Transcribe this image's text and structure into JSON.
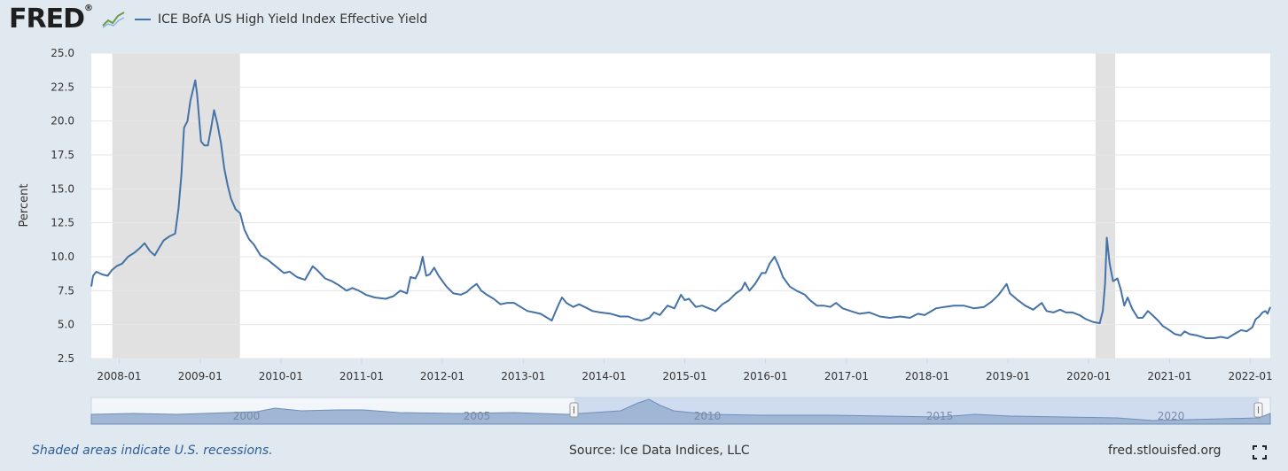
{
  "header": {
    "logo_text": "FRED",
    "logo_mark": "®",
    "legend_label": "ICE BofA US High Yield Index Effective Yield"
  },
  "footer": {
    "recession_note": "Shaded areas indicate U.S. recessions.",
    "source": "Source: Ice Data Indices, LLC",
    "site": "fred.stlouisfed.org"
  },
  "navigator": {
    "labels": [
      "2000",
      "2005",
      "2010",
      "2015",
      "2020"
    ]
  },
  "colors": {
    "background": "#e1e9f0",
    "plot_bg": "#ffffff",
    "line": "#4572a7",
    "recession": "#e1e1e1",
    "grid": "#e6e6e6"
  },
  "chart_data": {
    "type": "line",
    "title": "",
    "xlabel": "",
    "ylabel": "Percent",
    "ylim": [
      2.5,
      25.0
    ],
    "xlim": [
      "2007-08-28",
      "2022-04-01"
    ],
    "grid": true,
    "yticks": [
      "2.5",
      "5.0",
      "7.5",
      "10.0",
      "12.5",
      "15.0",
      "17.5",
      "20.0",
      "22.5",
      "25.0"
    ],
    "xticks": [
      "2008-01",
      "2009-01",
      "2010-01",
      "2011-01",
      "2012-01",
      "2013-01",
      "2014-01",
      "2015-01",
      "2016-01",
      "2017-01",
      "2018-01",
      "2019-01",
      "2020-01",
      "2021-01",
      "2022-01"
    ],
    "recessions": [
      [
        "2007-12-01",
        "2009-06-30"
      ],
      [
        "2020-02-01",
        "2020-04-30"
      ]
    ],
    "series": [
      {
        "name": "ICE BofA US High Yield Index Effective Yield",
        "points": [
          [
            "2007-08-28",
            7.8
          ],
          [
            "2007-09-05",
            8.6
          ],
          [
            "2007-09-20",
            8.9
          ],
          [
            "2007-10-15",
            8.7
          ],
          [
            "2007-11-10",
            8.6
          ],
          [
            "2007-11-28",
            9.0
          ],
          [
            "2007-12-20",
            9.3
          ],
          [
            "2008-01-15",
            9.5
          ],
          [
            "2008-02-10",
            10.0
          ],
          [
            "2008-03-10",
            10.3
          ],
          [
            "2008-04-01",
            10.6
          ],
          [
            "2008-04-25",
            11.0
          ],
          [
            "2008-05-20",
            10.4
          ],
          [
            "2008-06-10",
            10.1
          ],
          [
            "2008-07-01",
            10.7
          ],
          [
            "2008-07-20",
            11.2
          ],
          [
            "2008-08-15",
            11.5
          ],
          [
            "2008-09-10",
            11.7
          ],
          [
            "2008-09-25",
            13.5
          ],
          [
            "2008-10-08",
            16.0
          ],
          [
            "2008-10-20",
            19.5
          ],
          [
            "2008-11-05",
            20.0
          ],
          [
            "2008-11-18",
            21.5
          ],
          [
            "2008-12-10",
            23.0
          ],
          [
            "2008-12-18",
            22.0
          ],
          [
            "2009-01-05",
            18.5
          ],
          [
            "2009-01-20",
            18.2
          ],
          [
            "2009-02-05",
            18.2
          ],
          [
            "2009-02-20",
            19.5
          ],
          [
            "2009-03-05",
            20.8
          ],
          [
            "2009-03-20",
            19.8
          ],
          [
            "2009-04-05",
            18.4
          ],
          [
            "2009-04-20",
            16.5
          ],
          [
            "2009-05-05",
            15.3
          ],
          [
            "2009-05-20",
            14.3
          ],
          [
            "2009-06-10",
            13.5
          ],
          [
            "2009-07-01",
            13.2
          ],
          [
            "2009-07-20",
            12.0
          ],
          [
            "2009-08-10",
            11.3
          ],
          [
            "2009-09-01",
            10.9
          ],
          [
            "2009-10-01",
            10.1
          ],
          [
            "2009-11-01",
            9.8
          ],
          [
            "2009-12-01",
            9.4
          ],
          [
            "2010-01-15",
            8.8
          ],
          [
            "2010-02-10",
            8.9
          ],
          [
            "2010-03-15",
            8.5
          ],
          [
            "2010-04-20",
            8.3
          ],
          [
            "2010-05-25",
            9.3
          ],
          [
            "2010-06-15",
            9.0
          ],
          [
            "2010-07-20",
            8.4
          ],
          [
            "2010-08-20",
            8.2
          ],
          [
            "2010-09-20",
            7.9
          ],
          [
            "2010-10-25",
            7.5
          ],
          [
            "2010-11-20",
            7.7
          ],
          [
            "2010-12-20",
            7.5
          ],
          [
            "2011-01-20",
            7.2
          ],
          [
            "2011-03-01",
            7.0
          ],
          [
            "2011-04-20",
            6.9
          ],
          [
            "2011-05-25",
            7.1
          ],
          [
            "2011-06-25",
            7.5
          ],
          [
            "2011-07-25",
            7.3
          ],
          [
            "2011-08-10",
            8.5
          ],
          [
            "2011-09-01",
            8.4
          ],
          [
            "2011-09-20",
            9.0
          ],
          [
            "2011-10-04",
            10.0
          ],
          [
            "2011-10-20",
            8.6
          ],
          [
            "2011-11-05",
            8.7
          ],
          [
            "2011-11-25",
            9.2
          ],
          [
            "2011-12-15",
            8.6
          ],
          [
            "2012-01-20",
            7.8
          ],
          [
            "2012-02-20",
            7.3
          ],
          [
            "2012-03-25",
            7.2
          ],
          [
            "2012-04-20",
            7.4
          ],
          [
            "2012-05-10",
            7.7
          ],
          [
            "2012-06-04",
            8.0
          ],
          [
            "2012-06-25",
            7.5
          ],
          [
            "2012-07-20",
            7.2
          ],
          [
            "2012-08-20",
            6.9
          ],
          [
            "2012-09-20",
            6.5
          ],
          [
            "2012-10-20",
            6.6
          ],
          [
            "2012-11-20",
            6.6
          ],
          [
            "2012-12-20",
            6.3
          ],
          [
            "2013-01-20",
            6.0
          ],
          [
            "2013-02-20",
            5.9
          ],
          [
            "2013-03-20",
            5.8
          ],
          [
            "2013-04-20",
            5.5
          ],
          [
            "2013-05-10",
            5.3
          ],
          [
            "2013-05-25",
            5.9
          ],
          [
            "2013-06-10",
            6.5
          ],
          [
            "2013-06-25",
            7.0
          ],
          [
            "2013-07-15",
            6.6
          ],
          [
            "2013-08-15",
            6.3
          ],
          [
            "2013-09-10",
            6.5
          ],
          [
            "2013-10-05",
            6.3
          ],
          [
            "2013-11-10",
            6.0
          ],
          [
            "2013-12-15",
            5.9
          ],
          [
            "2014-02-01",
            5.8
          ],
          [
            "2014-03-15",
            5.6
          ],
          [
            "2014-04-20",
            5.6
          ],
          [
            "2014-05-20",
            5.4
          ],
          [
            "2014-06-20",
            5.3
          ],
          [
            "2014-07-25",
            5.5
          ],
          [
            "2014-08-15",
            5.9
          ],
          [
            "2014-09-10",
            5.7
          ],
          [
            "2014-09-25",
            6.0
          ],
          [
            "2014-10-15",
            6.4
          ],
          [
            "2014-11-15",
            6.2
          ],
          [
            "2014-12-15",
            7.2
          ],
          [
            "2015-01-01",
            6.8
          ],
          [
            "2015-01-20",
            6.9
          ],
          [
            "2015-02-20",
            6.3
          ],
          [
            "2015-03-20",
            6.4
          ],
          [
            "2015-04-20",
            6.2
          ],
          [
            "2015-05-20",
            6.0
          ],
          [
            "2015-06-20",
            6.5
          ],
          [
            "2015-07-20",
            6.8
          ],
          [
            "2015-08-20",
            7.3
          ],
          [
            "2015-09-15",
            7.6
          ],
          [
            "2015-09-30",
            8.1
          ],
          [
            "2015-10-20",
            7.5
          ],
          [
            "2015-11-15",
            8.0
          ],
          [
            "2015-12-15",
            8.8
          ],
          [
            "2016-01-01",
            8.8
          ],
          [
            "2016-01-20",
            9.5
          ],
          [
            "2016-02-11",
            10.0
          ],
          [
            "2016-02-28",
            9.4
          ],
          [
            "2016-03-20",
            8.5
          ],
          [
            "2016-04-20",
            7.8
          ],
          [
            "2016-05-20",
            7.5
          ],
          [
            "2016-06-27",
            7.2
          ],
          [
            "2016-07-20",
            6.8
          ],
          [
            "2016-08-20",
            6.4
          ],
          [
            "2016-09-20",
            6.4
          ],
          [
            "2016-10-20",
            6.3
          ],
          [
            "2016-11-15",
            6.6
          ],
          [
            "2016-12-15",
            6.2
          ],
          [
            "2017-01-20",
            6.0
          ],
          [
            "2017-03-01",
            5.8
          ],
          [
            "2017-04-15",
            5.9
          ],
          [
            "2017-06-01",
            5.6
          ],
          [
            "2017-07-15",
            5.5
          ],
          [
            "2017-09-01",
            5.6
          ],
          [
            "2017-10-15",
            5.5
          ],
          [
            "2017-11-20",
            5.8
          ],
          [
            "2017-12-20",
            5.7
          ],
          [
            "2018-02-10",
            6.2
          ],
          [
            "2018-03-20",
            6.3
          ],
          [
            "2018-05-01",
            6.4
          ],
          [
            "2018-06-15",
            6.4
          ],
          [
            "2018-08-01",
            6.2
          ],
          [
            "2018-09-15",
            6.3
          ],
          [
            "2018-10-20",
            6.7
          ],
          [
            "2018-11-20",
            7.2
          ],
          [
            "2018-12-26",
            8.0
          ],
          [
            "2019-01-10",
            7.3
          ],
          [
            "2019-02-15",
            6.8
          ],
          [
            "2019-03-20",
            6.4
          ],
          [
            "2019-04-25",
            6.1
          ],
          [
            "2019-06-03",
            6.6
          ],
          [
            "2019-06-25",
            6.0
          ],
          [
            "2019-07-25",
            5.9
          ],
          [
            "2019-08-25",
            6.1
          ],
          [
            "2019-09-20",
            5.9
          ],
          [
            "2019-10-20",
            5.9
          ],
          [
            "2019-11-20",
            5.7
          ],
          [
            "2019-12-20",
            5.4
          ],
          [
            "2020-01-20",
            5.2
          ],
          [
            "2020-02-20",
            5.1
          ],
          [
            "2020-03-05",
            6.0
          ],
          [
            "2020-03-15",
            8.0
          ],
          [
            "2020-03-23",
            11.4
          ],
          [
            "2020-04-05",
            9.5
          ],
          [
            "2020-04-20",
            8.2
          ],
          [
            "2020-05-10",
            8.4
          ],
          [
            "2020-05-25",
            7.6
          ],
          [
            "2020-06-10",
            6.4
          ],
          [
            "2020-06-25",
            7.0
          ],
          [
            "2020-07-15",
            6.2
          ],
          [
            "2020-08-10",
            5.5
          ],
          [
            "2020-09-01",
            5.5
          ],
          [
            "2020-09-25",
            6.0
          ],
          [
            "2020-10-15",
            5.7
          ],
          [
            "2020-11-10",
            5.3
          ],
          [
            "2020-12-01",
            4.9
          ],
          [
            "2020-12-30",
            4.6
          ],
          [
            "2021-01-25",
            4.3
          ],
          [
            "2021-02-20",
            4.2
          ],
          [
            "2021-03-10",
            4.5
          ],
          [
            "2021-04-01",
            4.3
          ],
          [
            "2021-05-05",
            4.2
          ],
          [
            "2021-06-15",
            4.0
          ],
          [
            "2021-07-20",
            4.0
          ],
          [
            "2021-08-20",
            4.1
          ],
          [
            "2021-09-20",
            4.0
          ],
          [
            "2021-10-20",
            4.3
          ],
          [
            "2021-11-20",
            4.6
          ],
          [
            "2021-12-15",
            4.5
          ],
          [
            "2022-01-10",
            4.8
          ],
          [
            "2022-01-25",
            5.4
          ],
          [
            "2022-02-10",
            5.6
          ],
          [
            "2022-02-25",
            5.9
          ],
          [
            "2022-03-10",
            6.0
          ],
          [
            "2022-03-20",
            5.8
          ],
          [
            "2022-04-01",
            6.3
          ]
        ]
      }
    ]
  }
}
